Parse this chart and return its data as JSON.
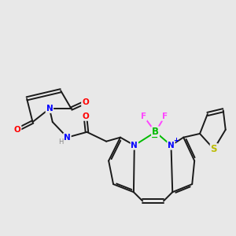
{
  "bg_color": "#e8e8e8",
  "bond_color": "#1a1a1a",
  "bond_width": 1.4,
  "atom_colors": {
    "N": "#0000ff",
    "O": "#ff0000",
    "B": "#00bb00",
    "F": "#ff44ff",
    "S": "#bbbb00",
    "H": "#888888",
    "C": "#1a1a1a"
  },
  "font_size": 7.5,
  "fig_size": [
    3.0,
    3.0
  ],
  "dpi": 100
}
